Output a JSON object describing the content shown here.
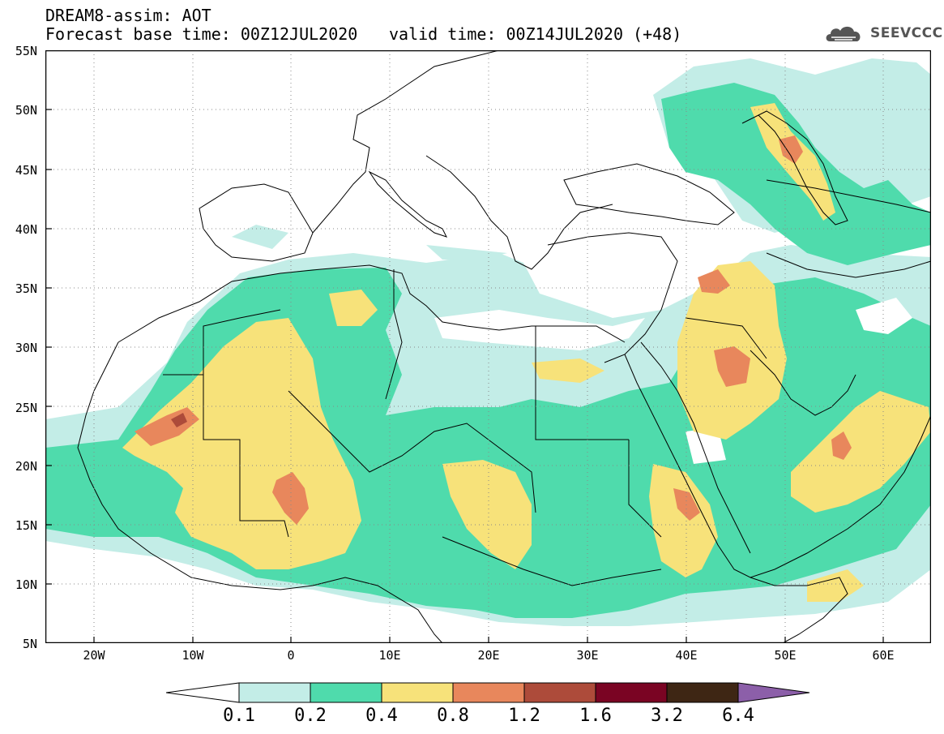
{
  "header": {
    "line1": "DREAM8-assim: AOT",
    "line2": "Forecast base time: 00Z12JUL2020",
    "line3": "valid time: 00Z14JUL2020 (+48)"
  },
  "logo": {
    "text": "SEEVCCC",
    "icon": "cloud-icon"
  },
  "map": {
    "projection": "lat-lon",
    "lon_range": [
      -25,
      65
    ],
    "lat_range": [
      5,
      55
    ],
    "lat_ticks": [
      "55N",
      "50N",
      "45N",
      "40N",
      "35N",
      "30N",
      "25N",
      "20N",
      "15N",
      "10N",
      "5N"
    ],
    "lon_ticks": [
      "20W",
      "10W",
      "0",
      "10E",
      "20E",
      "30E",
      "40E",
      "50E",
      "60E"
    ],
    "grid": "dotted"
  },
  "colorbar": {
    "labels": [
      "0.1",
      "0.2",
      "0.4",
      "0.8",
      "1.2",
      "1.6",
      "3.2",
      "6.4"
    ],
    "colors": [
      "#ffffff",
      "#c3ede7",
      "#4fdbac",
      "#f7e27a",
      "#e8875c",
      "#ad4b3a",
      "#7a0423",
      "#3e2614",
      "#8c5fa9"
    ]
  }
}
